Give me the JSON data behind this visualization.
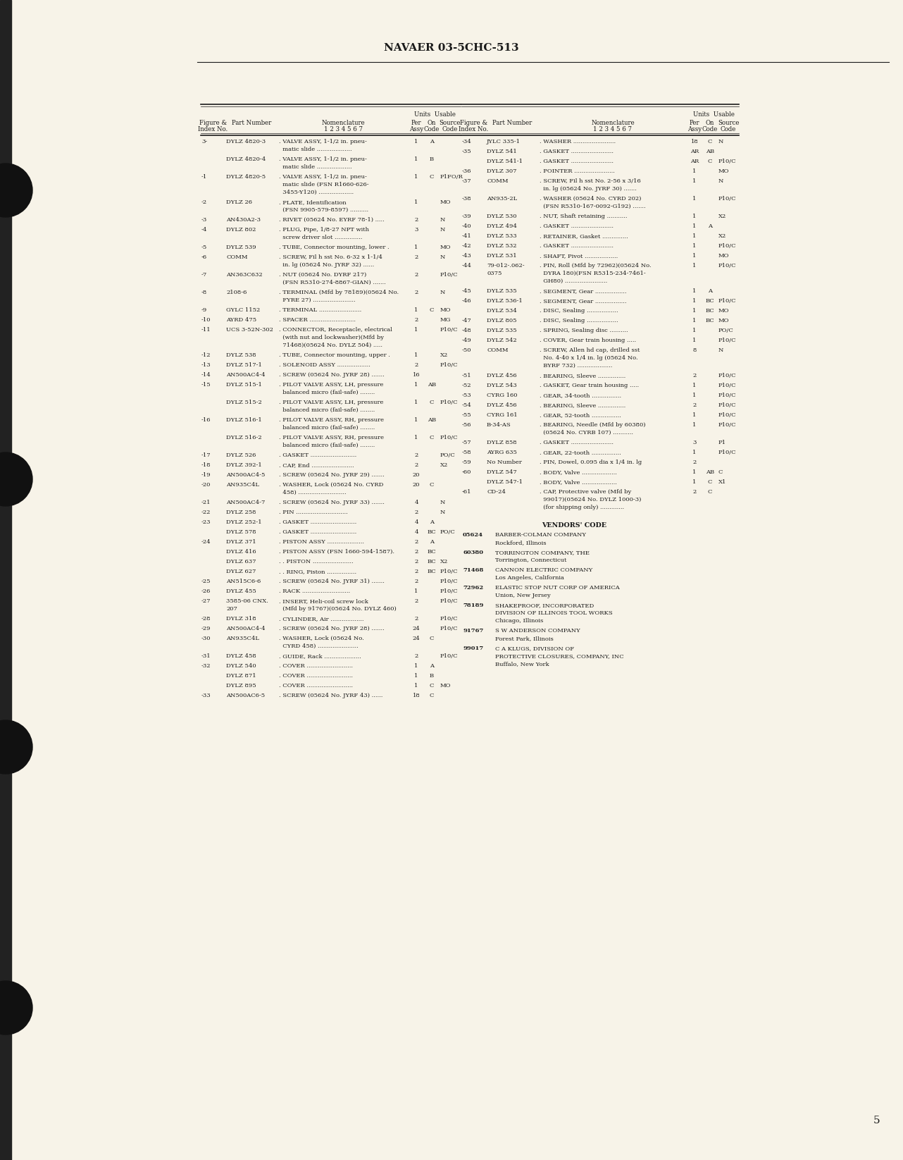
{
  "page_title": "NAVAER 03-5CHC-513",
  "page_number": "5",
  "background_color": "#f7f3e8",
  "text_color": "#1a1a1a",
  "left_table_rows": [
    [
      "3-",
      "DYLZ 4820-3",
      ". VALVE ASSY, 1-1/2 in. pneu-\n  matic slide ...................",
      "1",
      "A",
      ""
    ],
    [
      "",
      "DYLZ 4820-4",
      ". VALVE ASSY, 1-1/2 in. pneu-\n  matic slide ...................",
      "1",
      "B",
      ""
    ],
    [
      "-1",
      "DYLZ 4820-5",
      ". VALVE ASSY, 1-1/2 in. pneu-\n  matic slide (FSN R1660-626-\n  3455-Y120) ...................",
      "1",
      "C",
      "P1FO/R"
    ],
    [
      "-2",
      "DYLZ 26",
      ". PLATE, Identification\n  (FSN 9905-579-8597) ..........",
      "1",
      "",
      "MO"
    ],
    [
      "-3",
      "AN430A2-3",
      ". RIVET (05624 No. EYRF 78-1) .....",
      "2",
      "",
      "N"
    ],
    [
      "-4",
      "DYLZ 802",
      ". PLUG, Pipe, 1/8-27 NPT with\n  screw driver slot ...............",
      "3",
      "",
      "N"
    ],
    [
      "-5",
      "DYLZ 539",
      ". TUBE, Connector mounting, lower .",
      "1",
      "",
      "MO"
    ],
    [
      "-6",
      "COMM",
      ". SCREW, Fil h sst No. 6-32 x 1-1/4\n  in. lg (05624 No. JYRF 32) ......",
      "2",
      "",
      "N"
    ],
    [
      "-7",
      "AN363C632",
      ". NUT (05624 No. DYRF 217)\n  (FSN R5310-274-8867-GIAN) .......",
      "2",
      "",
      "P10/C"
    ],
    [
      "-8",
      "2108-6",
      ". TERMINAL (Mfd by 78189)(05624 No.\n  FYRE 27) .......................",
      "2",
      "",
      "N"
    ],
    [
      "-9",
      "GYLC 1152",
      ". TERMINAL .......................",
      "1",
      "C",
      "MO"
    ],
    [
      "-10",
      "AYRD 475",
      ". SPACER .........................",
      "2",
      "",
      "MG"
    ],
    [
      "-11",
      "UCS 3-52N-302",
      ". CONNECTOR, Receptacle, electrical\n  (with nut and lockwasher)(Mfd by\n  71468)(05624 No. DYLZ 504) .....",
      "1",
      "",
      "P10/C"
    ],
    [
      "-12",
      "DYLZ 538",
      ". TUBE, Connector mounting, upper .",
      "1",
      "",
      "X2"
    ],
    [
      "-13",
      "DYLZ 517-1",
      ". SOLENOID ASSY ..................",
      "2",
      "",
      "P10/C"
    ],
    [
      "-14",
      "AN500AC4-4",
      ". SCREW (05624 No. JYRF 28) .......",
      "16",
      "",
      ""
    ],
    [
      "-15",
      "DYLZ 515-1",
      ". PILOT VALVE ASSY, LH, pressure\n  balanced micro (fail-safe) ........",
      "1",
      "AB",
      ""
    ],
    [
      "",
      "DYLZ 515-2",
      ". PILOT VALVE ASSY, LH, pressure\n  balanced micro (fail-safe) ........",
      "1",
      "C",
      "P10/C"
    ],
    [
      "-16",
      "DYLZ 516-1",
      ". PILOT VALVE ASSY, RH, pressure\n  balanced micro (fail-safe) ........",
      "1",
      "AB",
      ""
    ],
    [
      "",
      "DYLZ 516-2",
      ". PILOT VALVE ASSY, RH, pressure\n  balanced micro (fail-safe) ........",
      "1",
      "C",
      "P10/C"
    ],
    [
      "-17",
      "DYLZ 526",
      ". GASKET .........................",
      "2",
      "",
      "PO/C"
    ],
    [
      "-18",
      "DYLZ 392-1",
      ". CAP, End .......................",
      "2",
      "",
      "X2"
    ],
    [
      "-19",
      "AN500AC4-5",
      ". SCREW (05624 No. JYRF 29) .......",
      "20",
      "",
      ""
    ],
    [
      "-20",
      "AN935C4L",
      ". WASHER, Lock (05624 No. CYRD\n  458) ..........................",
      "20",
      "C",
      ""
    ],
    [
      "-21",
      "AN500AC4-7",
      ". SCREW (05624 No. JYRF 33) .......",
      "4",
      "",
      "N"
    ],
    [
      "-22",
      "DYLZ 258",
      ". PIN ............................",
      "2",
      "",
      "N"
    ],
    [
      "-23",
      "DYLZ 252-1",
      ". GASKET .........................",
      "4",
      "A",
      ""
    ],
    [
      "",
      "DYLZ 578",
      ". GASKET .........................",
      "4",
      "BC",
      "PO/C"
    ],
    [
      "-24",
      "DYLZ 371",
      ". PISTON ASSY ....................",
      "2",
      "A",
      ""
    ],
    [
      "",
      "DYLZ 416",
      ". PISTON ASSY (FSN 1660-594-1587).",
      "2",
      "BC",
      ""
    ],
    [
      "",
      "DYLZ 637",
      ". . PISTON ......................",
      "2",
      "BC",
      "X2"
    ],
    [
      "",
      "DYLZ 627",
      ". . RING, Piston ................",
      "2",
      "BC",
      "P10/C"
    ],
    [
      "-25",
      "AN515C6-6",
      ". SCREW (05624 No. JYRF 31) .......",
      "2",
      "",
      "P10/C"
    ],
    [
      "-26",
      "DYLZ 455",
      ". RACK ..........................",
      "1",
      "",
      "P10/C"
    ],
    [
      "-27",
      "3585-06 CNX.\n207",
      ". INSERT, Heli-coil screw lock\n  (Mfd by 91767)(05624 No. DYLZ 460)",
      "2",
      "",
      "P10/C"
    ],
    [
      "-28",
      "DYLZ 318",
      ". CYLINDER, Air ..................",
      "2",
      "",
      "P10/C"
    ],
    [
      "-29",
      "AN500AC4-4",
      ". SCREW (05624 No. JYRF 28) .......",
      "24",
      "",
      "P10/C"
    ],
    [
      "-30",
      "AN935C4L",
      ". WASHER, Lock (05624 No.\n  CYRD 458) ......................",
      "24",
      "C",
      ""
    ],
    [
      "-31",
      "DYLZ 458",
      ". GUIDE, Rack ....................",
      "2",
      "",
      "P10/C"
    ],
    [
      "-32",
      "DYLZ 540",
      ". COVER .........................",
      "1",
      "A",
      ""
    ],
    [
      "",
      "DYLZ 871",
      ". COVER .........................",
      "1",
      "B",
      ""
    ],
    [
      "",
      "DYLZ 895",
      ". COVER .........................",
      "1",
      "C",
      "MO"
    ],
    [
      "-33",
      "AN500AC6-5",
      ". SCREW (05624 No. JYRF 43) ......",
      "18",
      "C",
      ""
    ]
  ],
  "right_table_rows": [
    [
      "-34",
      "JYLC 335-1",
      ". WASHER .......................",
      "18",
      "C",
      "N"
    ],
    [
      "-35",
      "DYLZ 541",
      ". GASKET .......................",
      "AR",
      "AB",
      ""
    ],
    [
      "",
      "DYLZ 541-1",
      ". GASKET .......................",
      "AR",
      "C",
      "P10/C"
    ],
    [
      "-36",
      "DYLZ 307",
      ". POINTER ......................",
      "1",
      "",
      "MO"
    ],
    [
      "-37",
      "COMM",
      ". SCREW, Fil h sst No. 2-56 x 3/16\n  in. lg (05624 No. JYRF 30) .......",
      "1",
      "",
      "N"
    ],
    [
      "-38",
      "AN935-2L",
      ". WASHER (05624 No. CYRD 202)\n  (FSN R5310-167-0092-G192) .......",
      "1",
      "",
      "P10/C"
    ],
    [
      "-39",
      "DYLZ 530",
      ". NUT, Shaft retaining ...........",
      "1",
      "",
      "X2"
    ],
    [
      "-40",
      "DYLZ 494",
      ". GASKET .......................",
      "1",
      "A",
      ""
    ],
    [
      "-41",
      "DYLZ 533",
      ". RETAINER, Gasket ..............",
      "1",
      "",
      "X2"
    ],
    [
      "-42",
      "DYLZ 532",
      ". GASKET .......................",
      "1",
      "",
      "P10/C"
    ],
    [
      "-43",
      "DYLZ 531",
      ". SHAFT, Pivot ..................",
      "1",
      "",
      "MO"
    ],
    [
      "-44",
      "79-012-.062-\n0375",
      ". PIN, Roll (Mfd by 72962)(05624 No.\n  DYRA 180)(FSN R5315-234-7461-\n  GH80) .......................",
      "1",
      "",
      "P10/C"
    ],
    [
      "-45",
      "DYLZ 535",
      ". SEGMENT, Gear .................",
      "1",
      "A",
      ""
    ],
    [
      "-46",
      "DYLZ 536-1",
      ". SEGMENT, Gear .................",
      "1",
      "BC",
      "P10/C"
    ],
    [
      "",
      "DYLZ 534",
      ". DISC, Sealing .................",
      "1",
      "BC",
      "MO"
    ],
    [
      "-47",
      "DYLZ 805",
      ". DISC, Sealing .................",
      "1",
      "BC",
      "MO"
    ],
    [
      "-48",
      "DYLZ 535",
      ". SPRING, Sealing disc ..........",
      "1",
      "",
      "PO/C"
    ],
    [
      "-49",
      "DYLZ 542",
      ". COVER, Gear train housing .....",
      "1",
      "",
      "P10/C"
    ],
    [
      "-50",
      "COMM",
      ". SCREW, Allen hd cap, drilled sst\n  No. 4-40 x 1/4 in. lg (05624 No.\n  BYRF 732) ...................",
      "8",
      "",
      "N"
    ],
    [
      "-51",
      "DYLZ 456",
      ". BEARING, Sleeve ...............",
      "2",
      "",
      "P10/C"
    ],
    [
      "-52",
      "DYLZ 543",
      ". GASKET, Gear train housing .....",
      "1",
      "",
      "P10/C"
    ],
    [
      "-53",
      "CYRG 160",
      ". GEAR, 34-tooth ................",
      "1",
      "",
      "P10/C"
    ],
    [
      "-54",
      "DYLZ 456",
      ". BEARING, Sleeve ...............",
      "2",
      "",
      "P10/C"
    ],
    [
      "-55",
      "CYRG 161",
      ". GEAR, 52-tooth ................",
      "1",
      "",
      "P10/C"
    ],
    [
      "-56",
      "B-34-AS",
      ". BEARING, Needle (Mfd by 60380)\n  (05624 No. CYRB 107) ...........",
      "1",
      "",
      "P10/C"
    ],
    [
      "-57",
      "DYLZ 858",
      ". GASKET .......................",
      "3",
      "",
      "P1"
    ],
    [
      "-58",
      "AYRG 635",
      ". GEAR, 22-tooth ................",
      "1",
      "",
      "P10/C"
    ],
    [
      "-59",
      "No Number",
      ". PIN, Dowel, 0.095 dia x 1/4 in. lg",
      "2",
      "",
      ""
    ],
    [
      "-60",
      "DYLZ 547",
      ". BODY, Valve ...................",
      "1",
      "AB",
      "C"
    ],
    [
      "",
      "DYLZ 547-1",
      ". BODY, Valve ...................",
      "1",
      "C",
      "X1"
    ],
    [
      "-61",
      "CD-24",
      ". CAP, Protective valve (Mfd by\n  99017)(05624 No. DYLZ 1000-3)\n  (for shipping only) .............",
      "2",
      "C",
      ""
    ]
  ],
  "vendors": [
    [
      "05624",
      "BARBER-COLMAN COMPANY",
      "Rockford, Illinois"
    ],
    [
      "60380",
      "TORRINGTON COMPANY, THE",
      "Torrington, Connecticut"
    ],
    [
      "71468",
      "CANNON ELECTRIC COMPANY",
      "Los Angeles, California"
    ],
    [
      "72962",
      "ELASTIC STOP NUT CORP OF AMERICA",
      "Union, New Jersey"
    ],
    [
      "78189",
      "SHAKEPROOF, INCORPORATED",
      "DIVISION OF ILLINOIS TOOL WORKS",
      "Chicago, Illinois"
    ],
    [
      "91767",
      "S W ANDERSON COMPANY",
      "Forest Park, Illinois"
    ],
    [
      "99017",
      "C A KLUGS, DIVISION OF",
      "PROTECTIVE CLOSURES, COMPANY, INC",
      "Buffalo, New York"
    ]
  ]
}
